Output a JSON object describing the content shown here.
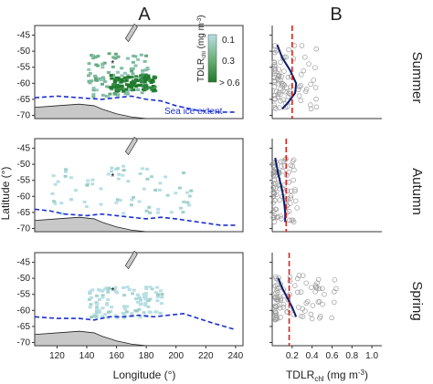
{
  "panel_letters": [
    "A",
    "B"
  ],
  "map_axes": {
    "xlabel": "Longitude (°)",
    "ylabel": "Latitude (°)",
    "xticks": [
      "120",
      "140",
      "160",
      "180",
      "200",
      "220",
      "240"
    ],
    "yticks": [
      "-45",
      "-50",
      "-55",
      "-60",
      "-65",
      "-70"
    ]
  },
  "profile_axes": {
    "xlabel_prefix": "TDLR",
    "xlabel_sub": "chl",
    "xlabel_units": " (mg m",
    "xlabel_sup": "-3",
    "xlabel_close": ")",
    "xticks": [
      "0.2",
      "0.4",
      "0.6",
      "0.8",
      "1.0"
    ]
  },
  "legend": {
    "title_prefix": "TDLR",
    "title_sub": "chl",
    "title_units": " (mg m",
    "title_sup": "-3",
    "title_close": ")",
    "labels": [
      "0.1",
      "0.3",
      "> 0.6"
    ]
  },
  "sea_ice_label": "Sea ice extent",
  "colors": {
    "ice_line": "#1a2fd0",
    "land": "#c8c8c8",
    "fit_line": "#0b1a6b",
    "threshold": "#e0201a",
    "points": "#9a9a9a",
    "color_low": "#b7dfe6",
    "color_high": "#1f7a2a"
  },
  "chart_data": [
    {
      "type": "heatmap",
      "season": "Summer",
      "xlim": [
        105,
        245
      ],
      "ylim": [
        -71,
        -42
      ],
      "cells": [
        {
          "lon_range": [
            140,
            180
          ],
          "lat_range": [
            -64,
            -50
          ],
          "tdlr_chl": 0.3
        },
        {
          "lon_range": [
            155,
            185
          ],
          "lat_range": [
            -62,
            -57
          ],
          "tdlr_chl": 0.6
        }
      ],
      "sea_ice_extent": {
        "lon": [
          105,
          120,
          135,
          150,
          160,
          170,
          180,
          190,
          200,
          215,
          230,
          240
        ],
        "lat": [
          -64.5,
          -64,
          -64.5,
          -65,
          -64.5,
          -64,
          -65,
          -65.5,
          -67,
          -68.5,
          -69,
          -69
        ]
      }
    },
    {
      "type": "heatmap",
      "season": "Autumn",
      "xlim": [
        105,
        245
      ],
      "ylim": [
        -71,
        -42
      ],
      "cells": [
        {
          "lon_range": [
            115,
            210
          ],
          "lat_range": [
            -65,
            -50
          ],
          "tdlr_chl": 0.1
        }
      ],
      "sea_ice_extent": {
        "lon": [
          105,
          115,
          125,
          140,
          150,
          160,
          170,
          180,
          190,
          200,
          215,
          230,
          240
        ],
        "lat": [
          -64,
          -64.5,
          -65.5,
          -66,
          -65.5,
          -66,
          -66.5,
          -67,
          -66.5,
          -67,
          -68,
          -69,
          -69
        ]
      }
    },
    {
      "type": "heatmap",
      "season": "Spring",
      "xlim": [
        105,
        245
      ],
      "ylim": [
        -71,
        -42
      ],
      "cells": [
        {
          "lon_range": [
            140,
            190
          ],
          "lat_range": [
            -62,
            -52
          ],
          "tdlr_chl": 0.1
        }
      ],
      "sea_ice_extent": {
        "lon": [
          105,
          120,
          135,
          145,
          155,
          165,
          175,
          185,
          195,
          205,
          215,
          225,
          240
        ],
        "lat": [
          -62,
          -62.5,
          -62.5,
          -63,
          -62,
          -62,
          -61.5,
          -62,
          -61.5,
          -61,
          -62.5,
          -64,
          -66
        ]
      }
    },
    {
      "type": "scatter",
      "season": "Summer",
      "xlim": [
        0,
        1.1
      ],
      "ylim": [
        -71,
        -42
      ],
      "threshold_x": 0.2,
      "fit": {
        "x": [
          0.05,
          0.1,
          0.18,
          0.24,
          0.23,
          0.16,
          0.1
        ],
        "y": [
          -48,
          -52,
          -56,
          -60,
          -63,
          -66,
          -68
        ]
      },
      "points": {
        "x_range": [
          0.02,
          0.45
        ],
        "y_range": [
          -68,
          -48
        ]
      }
    },
    {
      "type": "scatter",
      "season": "Autumn",
      "xlim": [
        0,
        1.1
      ],
      "ylim": [
        -71,
        -42
      ],
      "threshold_x": 0.14,
      "fit": {
        "x": [
          0.03,
          0.06,
          0.1,
          0.12,
          0.13,
          0.13
        ],
        "y": [
          -48,
          -53,
          -58,
          -62,
          -65,
          -68
        ]
      },
      "points": {
        "x_range": [
          0.01,
          0.25
        ],
        "y_range": [
          -68,
          -48
        ]
      }
    },
    {
      "type": "scatter",
      "season": "Spring",
      "xlim": [
        0,
        1.1
      ],
      "ylim": [
        -71,
        -42
      ],
      "threshold_x": 0.17,
      "fit": {
        "x": [
          0.06,
          0.1,
          0.15,
          0.2,
          0.24
        ],
        "y": [
          -50,
          -53,
          -56,
          -59,
          -62
        ]
      },
      "points": {
        "x_range": [
          0.03,
          0.7
        ],
        "y_range": [
          -63,
          -49
        ]
      }
    }
  ]
}
